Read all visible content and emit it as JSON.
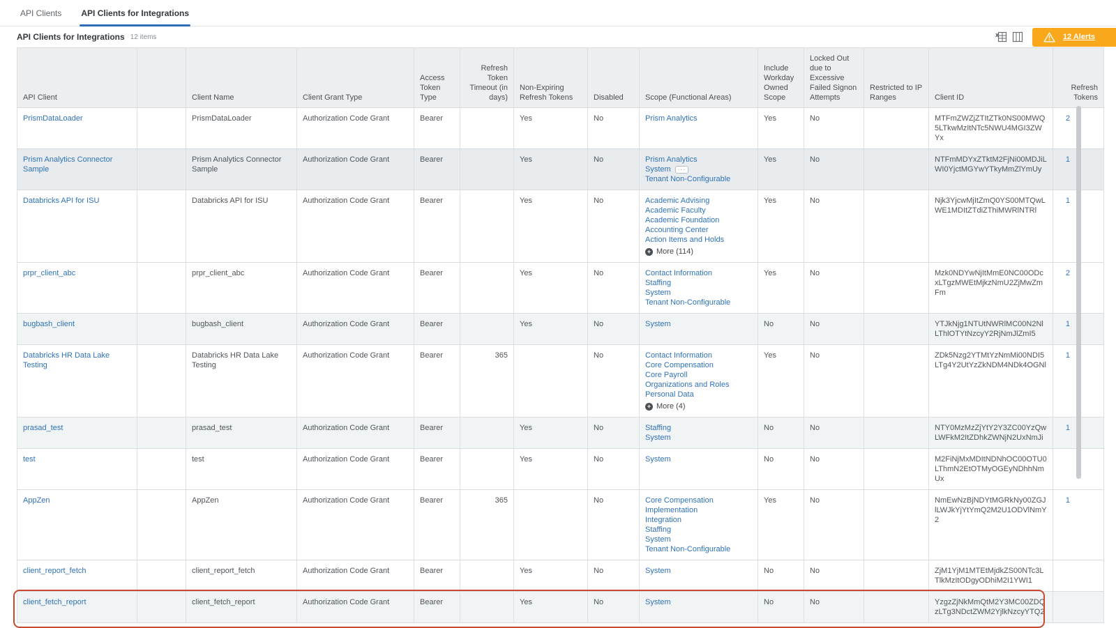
{
  "tabs": [
    {
      "label": "API Clients"
    },
    {
      "label": "API Clients for Integrations"
    }
  ],
  "header": {
    "title": "API Clients for Integrations",
    "items_count": "12 items",
    "alerts_label": "12 Alerts"
  },
  "colors": {
    "link_blue": "#2f72b8",
    "alert_badge_orange": "#f9a71b",
    "highlight_red": "#c94a30",
    "tab_underline_blue": "#2f6eb4"
  },
  "table": {
    "columns": [
      "API Client",
      "",
      "Client Name",
      "Client Grant Type",
      "Access Token Type",
      "Refresh Token Timeout (in days)",
      "Non-Expiring Refresh Tokens",
      "Disabled",
      "Scope (Functional Areas)",
      "Include Workday Owned Scope",
      "Locked Out due to Excessive Failed Signon Attempts",
      "Restricted to IP Ranges",
      "Client ID",
      "Refresh Tokens"
    ],
    "rows": [
      {
        "api_client": "PrismDataLoader",
        "client_name": "PrismDataLoader",
        "grant_type": "Authorization Code Grant",
        "token_type": "Bearer",
        "refresh_timeout": "",
        "non_expiring": "Yes",
        "disabled": "No",
        "scopes": [
          "Prism Analytics"
        ],
        "system_ellipsis": false,
        "more": "",
        "include_workday": "Yes",
        "locked_out": "No",
        "restricted": "",
        "client_id": "MTFmZWZjZTItZTk0NS00MWQ5LTkwMzItNTc5NWU4MGI3ZWYx",
        "refresh_tokens": "2",
        "shade": 0,
        "highlighted": false
      },
      {
        "api_client": "Prism Analytics Connector Sample",
        "client_name": "Prism Analytics Connector Sample",
        "grant_type": "Authorization Code Grant",
        "token_type": "Bearer",
        "refresh_timeout": "",
        "non_expiring": "Yes",
        "disabled": "No",
        "scopes": [
          "Prism Analytics",
          "System",
          "Tenant Non-Configurable"
        ],
        "system_ellipsis": true,
        "more": "",
        "include_workday": "Yes",
        "locked_out": "No",
        "restricted": "",
        "client_id": "NTFmMDYxZTktM2FjNi00MDJiLWI0YjctMGYwYTkyMmZlYmUy",
        "refresh_tokens": "1",
        "shade": 2,
        "highlighted": false
      },
      {
        "api_client": "Databricks API for ISU",
        "client_name": "Databricks API for ISU",
        "grant_type": "Authorization Code Grant",
        "token_type": "Bearer",
        "refresh_timeout": "",
        "non_expiring": "Yes",
        "disabled": "No",
        "scopes": [
          "Academic Advising",
          "Academic Faculty",
          "Academic Foundation",
          "Accounting Center",
          "Action Items and Holds"
        ],
        "system_ellipsis": false,
        "more": "More (114)",
        "include_workday": "Yes",
        "locked_out": "No",
        "restricted": "",
        "client_id": "Njk3YjcwMjItZmQ0YS00MTQwLWE1MDItZTdiZThiMWRlNTRl",
        "refresh_tokens": "1",
        "shade": 0,
        "highlighted": false
      },
      {
        "api_client": "prpr_client_abc",
        "client_name": "prpr_client_abc",
        "grant_type": "Authorization Code Grant",
        "token_type": "Bearer",
        "refresh_timeout": "",
        "non_expiring": "Yes",
        "disabled": "No",
        "scopes": [
          "Contact Information",
          "Staffing",
          "System",
          "Tenant Non-Configurable"
        ],
        "system_ellipsis": false,
        "more": "",
        "include_workday": "Yes",
        "locked_out": "No",
        "restricted": "",
        "client_id": "Mzk0NDYwNjItMmE0NC00ODcxLTgzMWEtMjkzNmU2ZjMwZmFm",
        "refresh_tokens": "2",
        "shade": 0,
        "highlighted": false
      },
      {
        "api_client": "bugbash_client",
        "client_name": "bugbash_client",
        "grant_type": "Authorization Code Grant",
        "token_type": "Bearer",
        "refresh_timeout": "",
        "non_expiring": "Yes",
        "disabled": "No",
        "scopes": [
          "System"
        ],
        "system_ellipsis": false,
        "more": "",
        "include_workday": "No",
        "locked_out": "No",
        "restricted": "",
        "client_id": "YTJkNjg1NTUtNWRlMC00N2NlLThlOTYtNzcyY2RjNmJlZmI5",
        "refresh_tokens": "1",
        "shade": 1,
        "highlighted": false
      },
      {
        "api_client": "Databricks HR Data Lake Testing",
        "client_name": "Databricks HR Data Lake Testing",
        "grant_type": "Authorization Code Grant",
        "token_type": "Bearer",
        "refresh_timeout": "365",
        "non_expiring": "",
        "disabled": "No",
        "scopes": [
          "Contact Information",
          "Core Compensation",
          "Core Payroll",
          "Organizations and Roles",
          "Personal Data"
        ],
        "system_ellipsis": false,
        "more": "More (4)",
        "include_workday": "Yes",
        "locked_out": "No",
        "restricted": "",
        "client_id": "ZDk5Nzg2YTMtYzNmMi00NDI5LTg4Y2UtYzZkNDM4NDk4OGNl",
        "refresh_tokens": "1",
        "shade": 0,
        "highlighted": false
      },
      {
        "api_client": "prasad_test",
        "client_name": "prasad_test",
        "grant_type": "Authorization Code Grant",
        "token_type": "Bearer",
        "refresh_timeout": "",
        "non_expiring": "Yes",
        "disabled": "No",
        "scopes": [
          "Staffing",
          "System"
        ],
        "system_ellipsis": false,
        "more": "",
        "include_workday": "No",
        "locked_out": "No",
        "restricted": "",
        "client_id": "NTY0MzMzZjYtY2Y3ZC00YzQwLWFkM2ItZDhkZWNjN2UxNmJi",
        "refresh_tokens": "1",
        "shade": 1,
        "highlighted": false
      },
      {
        "api_client": "test",
        "client_name": "test",
        "grant_type": "Authorization Code Grant",
        "token_type": "Bearer",
        "refresh_timeout": "",
        "non_expiring": "Yes",
        "disabled": "No",
        "scopes": [
          "System"
        ],
        "system_ellipsis": false,
        "more": "",
        "include_workday": "No",
        "locked_out": "No",
        "restricted": "",
        "client_id": "M2FiNjMxMDItNDNhOC00OTU0LThmN2EtOTMyOGEyNDhhNmUx",
        "refresh_tokens": "",
        "shade": 0,
        "highlighted": false
      },
      {
        "api_client": "AppZen",
        "client_name": "AppZen",
        "grant_type": "Authorization Code Grant",
        "token_type": "Bearer",
        "refresh_timeout": "365",
        "non_expiring": "",
        "disabled": "No",
        "scopes": [
          "Core Compensation",
          "Implementation",
          "Integration",
          "Staffing",
          "System",
          "Tenant Non-Configurable"
        ],
        "system_ellipsis": false,
        "more": "",
        "include_workday": "Yes",
        "locked_out": "No",
        "restricted": "",
        "client_id": "NmEwNzBjNDYtMGRkNy00ZGJlLWJkYjYtYmQ2M2U1ODVlNmY2",
        "refresh_tokens": "1",
        "shade": 0,
        "highlighted": false
      },
      {
        "api_client": "client_report_fetch",
        "client_name": "client_report_fetch",
        "grant_type": "Authorization Code Grant",
        "token_type": "Bearer",
        "refresh_timeout": "",
        "non_expiring": "Yes",
        "disabled": "No",
        "scopes": [
          "System"
        ],
        "system_ellipsis": false,
        "more": "",
        "include_workday": "No",
        "locked_out": "No",
        "restricted": "",
        "client_id": "ZjM1YjM1MTEtMjdkZS00NTc3LTlkMzItODgyODhiM2I1YWI1",
        "refresh_tokens": "",
        "shade": 0,
        "highlighted": false
      },
      {
        "api_client": "client_fetch_report",
        "client_name": "client_fetch_report",
        "grant_type": "Authorization Code Grant",
        "token_type": "Bearer",
        "refresh_timeout": "",
        "non_expiring": "Yes",
        "disabled": "No",
        "scopes": [
          "System"
        ],
        "system_ellipsis": false,
        "more": "",
        "include_workday": "No",
        "locked_out": "No",
        "restricted": "",
        "client_id": "YzgzZjNkMmQtM2Y3MC00ZDQzLTg3NDctZWM2YjlkNzcyYTQ2",
        "refresh_tokens": "",
        "shade": 1,
        "highlighted": true
      }
    ]
  }
}
